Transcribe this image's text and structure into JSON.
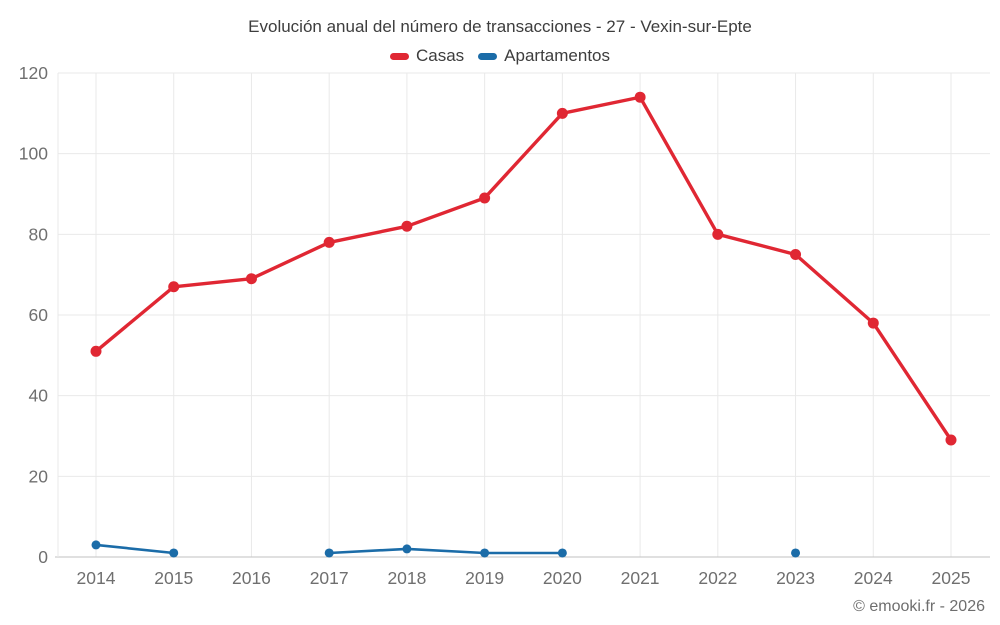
{
  "chart_data": {
    "type": "line",
    "title": "Evolución anual del número de transacciones - 27 - Vexin-sur-Epte",
    "categories": [
      "2014",
      "2015",
      "2016",
      "2017",
      "2018",
      "2019",
      "2020",
      "2021",
      "2022",
      "2023",
      "2024",
      "2025"
    ],
    "series": [
      {
        "name": "Casas",
        "color": "#e02733",
        "values": [
          51,
          67,
          69,
          78,
          82,
          89,
          110,
          114,
          80,
          75,
          58,
          29
        ]
      },
      {
        "name": "Apartamentos",
        "color": "#1b6ca8",
        "values": [
          3,
          1,
          null,
          1,
          2,
          1,
          1,
          null,
          null,
          1,
          null,
          null
        ]
      }
    ],
    "xlabel": "",
    "ylabel": "",
    "ylim": [
      0,
      120
    ],
    "ytick_step": 20,
    "grid": true,
    "legend_position": "top-center",
    "marker": "circle"
  },
  "footer": {
    "copyright": "© emooki.fr - 2026"
  },
  "theme": {
    "background": "#ffffff",
    "title_color": "#3d3d3d",
    "tick_label_color": "#6f6f6f",
    "gridline_color": "#e9e9e9",
    "axis_line_color": "#c2c2c2",
    "footer_color": "#6e6e6e"
  }
}
